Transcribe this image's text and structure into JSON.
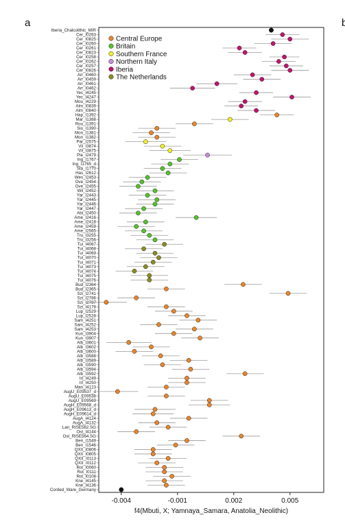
{
  "figure": {
    "panel_letter": "a",
    "next_panel_letter": "b"
  },
  "chart_data": {
    "type": "scatter",
    "xlabel": "f4(Mbuti, X; Yamnaya_Samara, Anatolia_Neolithic)",
    "xticks": [
      "-0.004",
      "-0.001",
      "0.002",
      "0.005"
    ],
    "xtick_values": [
      -0.004,
      -0.001,
      0.002,
      0.005
    ],
    "xlim": [
      -0.0052,
      0.0068
    ],
    "error_bars": true,
    "legend_position": "top-left",
    "legend": [
      {
        "name": "Central Europe",
        "color": "#E8862A"
      },
      {
        "name": "Britain",
        "color": "#56C22B"
      },
      {
        "name": "Southern France",
        "color": "#F0F02A"
      },
      {
        "name": "Northern Italy",
        "color": "#C98BD8"
      },
      {
        "name": "Iberia",
        "color": "#C0136F"
      },
      {
        "name": "The Netherlands",
        "color": "#8C8C22"
      }
    ],
    "reference_colors": {
      "Iberia_Chalcolithic_MIR": "#111111",
      "Corded_Ware_Germany": "#111111"
    },
    "rows": [
      {
        "label": "Iberia_Chalcolithic_MIR",
        "group": "ref",
        "value": 0.004,
        "err": 0.0
      },
      {
        "label": "Cer_I0263",
        "group": "Iberia",
        "value": 0.0046,
        "err": 0.0009
      },
      {
        "label": "Cer_I0825",
        "group": "Iberia",
        "value": 0.005,
        "err": 0.001
      },
      {
        "label": "Cer_I0260",
        "group": "Iberia",
        "value": 0.0041,
        "err": 0.001
      },
      {
        "label": "Cer_I0261",
        "group": "Iberia",
        "value": 0.0023,
        "err": 0.0009
      },
      {
        "label": "Cer_I0823",
        "group": "Iberia",
        "value": 0.0026,
        "err": 0.0009
      },
      {
        "label": "Cer_I0258",
        "group": "Iberia",
        "value": 0.0047,
        "err": 0.0008
      },
      {
        "label": "Cer_I0262",
        "group": "Iberia",
        "value": 0.0044,
        "err": 0.0009
      },
      {
        "label": "Cer_I0257",
        "group": "Iberia",
        "value": 0.0048,
        "err": 0.0009
      },
      {
        "label": "Cer_I0826",
        "group": "Iberia",
        "value": 0.005,
        "err": 0.001
      },
      {
        "label": "Arr_I0460",
        "group": "Iberia",
        "value": 0.003,
        "err": 0.001
      },
      {
        "label": "Arr_I0459",
        "group": "Iberia",
        "value": 0.0035,
        "err": 0.001
      },
      {
        "label": "Arr_I0461",
        "group": "Iberia",
        "value": 0.0011,
        "err": 0.0011
      },
      {
        "label": "Arr_I0462",
        "group": "Iberia",
        "value": -0.0002,
        "err": 0.0012
      },
      {
        "label": "Yec_I4245",
        "group": "Iberia",
        "value": 0.0032,
        "err": 0.0009
      },
      {
        "label": "Yec_I4247",
        "group": "Iberia",
        "value": 0.0051,
        "err": 0.001
      },
      {
        "label": "Mou_I4229",
        "group": "Iberia",
        "value": 0.0026,
        "err": 0.0009
      },
      {
        "label": "Alm_I0839",
        "group": "Iberia",
        "value": 0.0024,
        "err": 0.0009
      },
      {
        "label": "Alm_I0840",
        "group": "Iberia",
        "value": 0.0032,
        "err": 0.001
      },
      {
        "label": "Hap_I1392",
        "group": "Central Europe",
        "value": 0.0043,
        "err": 0.0009
      },
      {
        "label": "Mar_I1388",
        "group": "Southern France",
        "value": 0.0018,
        "err": 0.001
      },
      {
        "label": "Rou_I1391",
        "group": "Central Europe",
        "value": -0.0001,
        "err": 0.001
      },
      {
        "label": "Sio_I1390",
        "group": "Central Europe",
        "value": -0.0021,
        "err": 0.001
      },
      {
        "label": "Mon_I1381",
        "group": "Central Europe",
        "value": -0.0024,
        "err": 0.001
      },
      {
        "label": "Mon_I1382",
        "group": "Central Europe",
        "value": -0.0021,
        "err": 0.001
      },
      {
        "label": "Par_I2575",
        "group": "Southern France",
        "value": -0.0027,
        "err": 0.0011
      },
      {
        "label": "Vil_I3874",
        "group": "Southern France",
        "value": -0.0018,
        "err": 0.001
      },
      {
        "label": "Vil_I3875",
        "group": "Southern France",
        "value": -0.0014,
        "err": 0.0011
      },
      {
        "label": "Pie_I2479",
        "group": "Northern Italy",
        "value": 0.0006,
        "err": 0.0013
      },
      {
        "label": "Ing_I1767",
        "group": "Britain",
        "value": -0.0009,
        "err": 0.001
      },
      {
        "label": "Ing_I1765_d",
        "group": "Britain",
        "value": -0.0014,
        "err": 0.001
      },
      {
        "label": "Sta_I1770",
        "group": "Britain",
        "value": -0.0018,
        "err": 0.001
      },
      {
        "label": "Has_I2612",
        "group": "Britain",
        "value": -0.0015,
        "err": 0.001
      },
      {
        "label": "Wes_I2453",
        "group": "Britain",
        "value": -0.0026,
        "err": 0.001
      },
      {
        "label": "Ove_I2454",
        "group": "Britain",
        "value": -0.0029,
        "err": 0.001
      },
      {
        "label": "Ove_I2455",
        "group": "Britain",
        "value": -0.0031,
        "err": 0.001
      },
      {
        "label": "Wil_I2452",
        "group": "Britain",
        "value": -0.0022,
        "err": 0.001
      },
      {
        "label": "Yar_I2443",
        "group": "Britain",
        "value": -0.0026,
        "err": 0.001
      },
      {
        "label": "Yar_I2445",
        "group": "Britain",
        "value": -0.0021,
        "err": 0.001
      },
      {
        "label": "Yar_I2446",
        "group": "Britain",
        "value": -0.0022,
        "err": 0.001
      },
      {
        "label": "Yar_I2447",
        "group": "Britain",
        "value": -0.0028,
        "err": 0.001
      },
      {
        "label": "Abi_I2450",
        "group": "Britain",
        "value": -0.0031,
        "err": 0.001
      },
      {
        "label": "Ame_I2416",
        "group": "Britain",
        "value": 0.0,
        "err": 0.0011
      },
      {
        "label": "Ame_I2418",
        "group": "Britain",
        "value": -0.0027,
        "err": 0.001
      },
      {
        "label": "Ame_I2459",
        "group": "Britain",
        "value": -0.0032,
        "err": 0.001
      },
      {
        "label": "Ame_I2565",
        "group": "Britain",
        "value": -0.0028,
        "err": 0.001
      },
      {
        "label": "Tru_I3255",
        "group": "Britain",
        "value": -0.0025,
        "err": 0.001
      },
      {
        "label": "Tru_I3256",
        "group": "Britain",
        "value": -0.0022,
        "err": 0.001
      },
      {
        "label": "Tui_I4067",
        "group": "The Netherlands",
        "value": -0.0017,
        "err": 0.001
      },
      {
        "label": "Tui_I4068",
        "group": "The Netherlands",
        "value": -0.0028,
        "err": 0.001
      },
      {
        "label": "Tui_I4069",
        "group": "The Netherlands",
        "value": -0.0022,
        "err": 0.001
      },
      {
        "label": "Tui_I4070",
        "group": "The Netherlands",
        "value": -0.002,
        "err": 0.001
      },
      {
        "label": "Tui_I4071",
        "group": "The Netherlands",
        "value": -0.0023,
        "err": 0.001
      },
      {
        "label": "Tui_I4073",
        "group": "The Netherlands",
        "value": -0.0027,
        "err": 0.001
      },
      {
        "label": "Tui_I4074",
        "group": "The Netherlands",
        "value": -0.0033,
        "err": 0.001
      },
      {
        "label": "Tui_I4075",
        "group": "The Netherlands",
        "value": -0.0025,
        "err": 0.001
      },
      {
        "label": "Tui_I4076",
        "group": "The Netherlands",
        "value": -0.0025,
        "err": 0.001
      },
      {
        "label": "Bud_I2364",
        "group": "Central Europe",
        "value": 0.0025,
        "err": 0.001
      },
      {
        "label": "Bud_I2365",
        "group": "Central Europe",
        "value": -0.0016,
        "err": 0.001
      },
      {
        "label": "Szi_I2741",
        "group": "Central Europe",
        "value": 0.0049,
        "err": 0.001
      },
      {
        "label": "Szi_I2786",
        "group": "Central Europe",
        "value": -0.0032,
        "err": 0.001
      },
      {
        "label": "Szi_I2787",
        "group": "Central Europe",
        "value": -0.0048,
        "err": 0.0011
      },
      {
        "label": "Szi_I4178",
        "group": "Central Europe",
        "value": -0.0016,
        "err": 0.001
      },
      {
        "label": "Lup_I2529",
        "group": "Central Europe",
        "value": -0.0012,
        "err": 0.001
      },
      {
        "label": "Lup_I2528",
        "group": "Central Europe",
        "value": -0.0005,
        "err": 0.001
      },
      {
        "label": "Sam_I4251",
        "group": "Central Europe",
        "value": 0.0001,
        "err": 0.001
      },
      {
        "label": "Sam_I4252",
        "group": "Central Europe",
        "value": -0.002,
        "err": 0.001
      },
      {
        "label": "Sam_I4253",
        "group": "Central Europe",
        "value": -0.0001,
        "err": 0.001
      },
      {
        "label": "Kun_I3904",
        "group": "Central Europe",
        "value": -0.0012,
        "err": 0.001
      },
      {
        "label": "Kun_I3907",
        "group": "Central Europe",
        "value": 0.0002,
        "err": 0.001
      },
      {
        "label": "Alb_I3601",
        "group": "Central Europe",
        "value": -0.0036,
        "err": 0.0012
      },
      {
        "label": "Alb_I3602",
        "group": "Central Europe",
        "value": -0.0024,
        "err": 0.001
      },
      {
        "label": "Alb_I3600",
        "group": "Central Europe",
        "value": -0.0033,
        "err": 0.001
      },
      {
        "label": "Alb_I3588",
        "group": "Central Europe",
        "value": -0.0019,
        "err": 0.001
      },
      {
        "label": "Alb_I3589",
        "group": "Central Europe",
        "value": -0.0004,
        "err": 0.001
      },
      {
        "label": "Alb_I3590",
        "group": "Central Europe",
        "value": -0.0018,
        "err": 0.001
      },
      {
        "label": "Alb_I3594",
        "group": "Central Europe",
        "value": -0.0003,
        "err": 0.001
      },
      {
        "label": "Alb_I3592",
        "group": "Central Europe",
        "value": 0.0026,
        "err": 0.001
      },
      {
        "label": "Irl_I4249",
        "group": "Central Europe",
        "value": -0.0005,
        "err": 0.001
      },
      {
        "label": "Irl_I4250",
        "group": "Central Europe",
        "value": -0.0005,
        "err": 0.001
      },
      {
        "label": "Man_I4123",
        "group": "Central Europe",
        "value": -0.0016,
        "err": 0.001
      },
      {
        "label": "AugU_E09537_d",
        "group": "Central Europe",
        "value": -0.0042,
        "err": 0.0011
      },
      {
        "label": "AugU_E09538",
        "group": "Central Europe",
        "value": -0.0016,
        "err": 0.001
      },
      {
        "label": "AugU_E09569",
        "group": "Central Europe",
        "value": 0.0007,
        "err": 0.001
      },
      {
        "label": "AugH_E09568_d",
        "group": "Central Europe",
        "value": 0.0007,
        "err": 0.0011
      },
      {
        "label": "AugH_E09613_d",
        "group": "Central Europe",
        "value": -0.0022,
        "err": 0.0011
      },
      {
        "label": "AugH_E09614_d",
        "group": "Central Europe",
        "value": -0.0023,
        "err": 0.0011
      },
      {
        "label": "AugA_I4124",
        "group": "Central Europe",
        "value": -0.0004,
        "err": 0.001
      },
      {
        "label": "AugA_I4132",
        "group": "Central Europe",
        "value": -0.0021,
        "err": 0.001
      },
      {
        "label": "Lan_RISE562.SG",
        "group": "Central Europe",
        "value": -0.0015,
        "err": 0.001
      },
      {
        "label": "Ost_I4144",
        "group": "Central Europe",
        "value": -0.0032,
        "err": 0.001
      },
      {
        "label": "Ost_RISE564.SG",
        "group": "Central Europe",
        "value": 0.0024,
        "err": 0.001
      },
      {
        "label": "Ben_I1549",
        "group": "Central Europe",
        "value": -0.0005,
        "err": 0.001
      },
      {
        "label": "Ben_I1546",
        "group": "Central Europe",
        "value": -0.0011,
        "err": 0.001
      },
      {
        "label": "QXII_I0806",
        "group": "Central Europe",
        "value": -0.0023,
        "err": 0.001
      },
      {
        "label": "QXII_I0805",
        "group": "Central Europe",
        "value": -0.0023,
        "err": 0.001
      },
      {
        "label": "QXII_I0113",
        "group": "Central Europe",
        "value": -0.0015,
        "err": 0.001
      },
      {
        "label": "QXII_I0112",
        "group": "Central Europe",
        "value": -0.0021,
        "err": 0.001
      },
      {
        "label": "Rot_I0060",
        "group": "Central Europe",
        "value": -0.0017,
        "err": 0.001
      },
      {
        "label": "Rot_I0111",
        "group": "Central Europe",
        "value": -0.0017,
        "err": 0.001
      },
      {
        "label": "Rot_I0108",
        "group": "Central Europe",
        "value": -0.0013,
        "err": 0.001
      },
      {
        "label": "Kne_I4145",
        "group": "Central Europe",
        "value": -0.0017,
        "err": 0.001
      },
      {
        "label": "Kne_I4136",
        "group": "Central Europe",
        "value": -0.0016,
        "err": 0.001
      },
      {
        "label": "Corded_Ware_Germany",
        "group": "ref",
        "value": -0.004,
        "err": 0.0
      }
    ]
  }
}
